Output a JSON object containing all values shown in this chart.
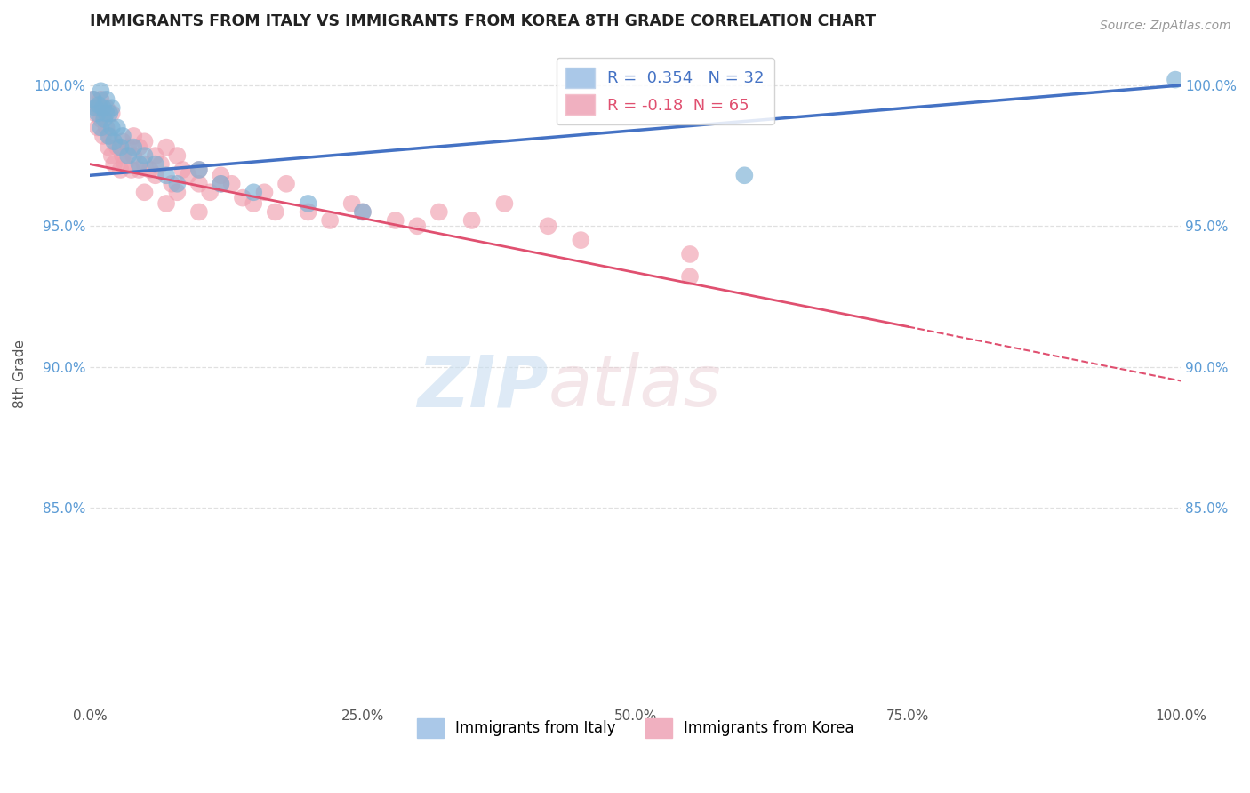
{
  "title": "IMMIGRANTS FROM ITALY VS IMMIGRANTS FROM KOREA 8TH GRADE CORRELATION CHART",
  "source": "Source: ZipAtlas.com",
  "xlabel": "",
  "ylabel": "8th Grade",
  "xlim": [
    0.0,
    100.0
  ],
  "ylim": [
    78.0,
    101.5
  ],
  "yticks": [
    85.0,
    90.0,
    95.0,
    100.0
  ],
  "xticks": [
    0.0,
    25.0,
    50.0,
    75.0,
    100.0
  ],
  "blue_R": 0.354,
  "blue_N": 32,
  "pink_R": -0.18,
  "pink_N": 65,
  "blue_color": "#7ab0d4",
  "pink_color": "#f0a0b0",
  "blue_line_color": "#4472c4",
  "pink_line_color": "#e05070",
  "blue_line_x0": 0.0,
  "blue_line_y0": 96.8,
  "blue_line_x1": 100.0,
  "blue_line_y1": 100.0,
  "pink_line_x0": 0.0,
  "pink_line_y0": 97.2,
  "pink_line_x1": 100.0,
  "pink_line_y1": 89.5,
  "pink_solid_end": 75.0,
  "blue_scatter_x": [
    0.3,
    0.5,
    0.7,
    0.8,
    1.0,
    1.0,
    1.2,
    1.3,
    1.5,
    1.5,
    1.7,
    1.8,
    2.0,
    2.0,
    2.2,
    2.5,
    2.8,
    3.0,
    3.5,
    4.0,
    4.5,
    5.0,
    6.0,
    7.0,
    8.0,
    10.0,
    12.0,
    15.0,
    20.0,
    25.0,
    60.0,
    99.5
  ],
  "blue_scatter_y": [
    99.5,
    99.2,
    99.0,
    99.3,
    99.8,
    98.5,
    99.2,
    98.8,
    99.5,
    99.0,
    98.2,
    99.0,
    98.5,
    99.2,
    98.0,
    98.5,
    97.8,
    98.2,
    97.5,
    97.8,
    97.2,
    97.5,
    97.2,
    96.8,
    96.5,
    97.0,
    96.5,
    96.2,
    95.8,
    95.5,
    96.8,
    100.2
  ],
  "pink_scatter_x": [
    0.3,
    0.5,
    0.7,
    0.8,
    1.0,
    1.0,
    1.2,
    1.3,
    1.5,
    1.5,
    1.7,
    1.8,
    2.0,
    2.0,
    2.2,
    2.5,
    2.8,
    3.0,
    3.0,
    3.2,
    3.5,
    3.8,
    4.0,
    4.0,
    4.5,
    4.5,
    5.0,
    5.0,
    5.5,
    6.0,
    6.0,
    6.5,
    7.0,
    7.5,
    8.0,
    8.0,
    8.5,
    9.0,
    10.0,
    10.0,
    11.0,
    12.0,
    13.0,
    14.0,
    15.0,
    16.0,
    17.0,
    18.0,
    20.0,
    22.0,
    24.0,
    25.0,
    28.0,
    30.0,
    32.0,
    35.0,
    38.0,
    42.0,
    45.0,
    55.0,
    5.0,
    7.0,
    10.0,
    55.0,
    12.0
  ],
  "pink_scatter_y": [
    99.5,
    99.0,
    98.5,
    99.2,
    98.8,
    99.5,
    98.2,
    99.0,
    98.5,
    99.2,
    97.8,
    98.2,
    97.5,
    99.0,
    97.2,
    97.8,
    97.0,
    97.5,
    98.0,
    97.2,
    97.8,
    97.0,
    97.5,
    98.2,
    97.0,
    97.8,
    97.2,
    98.0,
    97.0,
    97.5,
    96.8,
    97.2,
    97.8,
    96.5,
    97.5,
    96.2,
    97.0,
    96.8,
    97.0,
    96.5,
    96.2,
    96.8,
    96.5,
    96.0,
    95.8,
    96.2,
    95.5,
    96.5,
    95.5,
    95.2,
    95.8,
    95.5,
    95.2,
    95.0,
    95.5,
    95.2,
    95.8,
    95.0,
    94.5,
    94.0,
    96.2,
    95.8,
    95.5,
    93.2,
    96.5
  ],
  "background_color": "#ffffff",
  "grid_color": "#dddddd"
}
